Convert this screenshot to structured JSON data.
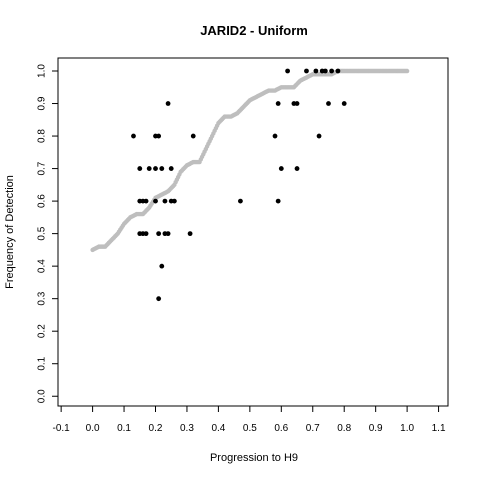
{
  "chart_data": {
    "type": "scatter",
    "title": "JARID2 - Uniform",
    "xlabel": "Progression to H9",
    "ylabel": "Frequency of Detection",
    "xlim": [
      -0.11,
      1.13
    ],
    "ylim": [
      -0.03,
      1.04
    ],
    "x_ticks": [
      -0.1,
      0.0,
      0.1,
      0.2,
      0.3,
      0.4,
      0.5,
      0.6,
      0.7,
      0.8,
      0.9,
      1.0,
      1.1
    ],
    "x_tick_labels": [
      "-0.1",
      "0.0",
      "0.1",
      "0.2",
      "0.3",
      "0.4",
      "0.5",
      "0.6",
      "0.7",
      "0.8",
      "0.9",
      "1.0",
      "1.1"
    ],
    "y_ticks": [
      0.0,
      0.1,
      0.2,
      0.3,
      0.4,
      0.5,
      0.6,
      0.7,
      0.8,
      0.9,
      1.0
    ],
    "y_tick_labels": [
      "0.0",
      "0.1",
      "0.2",
      "0.3",
      "0.4",
      "0.5",
      "0.6",
      "0.7",
      "0.8",
      "0.9",
      "1.0"
    ],
    "grid": false,
    "colors": {
      "observed": "#000000",
      "curve": "#bebebe"
    },
    "series": [
      {
        "points": [
          [
            0.13,
            0.8
          ],
          [
            0.15,
            0.7
          ],
          [
            0.15,
            0.6
          ],
          [
            0.15,
            0.5
          ],
          [
            0.16,
            0.6
          ],
          [
            0.16,
            0.5
          ],
          [
            0.17,
            0.6
          ],
          [
            0.17,
            0.5
          ],
          [
            0.18,
            0.7
          ],
          [
            0.2,
            0.8
          ],
          [
            0.2,
            0.7
          ],
          [
            0.2,
            0.6
          ],
          [
            0.21,
            0.8
          ],
          [
            0.21,
            0.5
          ],
          [
            0.21,
            0.3
          ],
          [
            0.22,
            0.7
          ],
          [
            0.22,
            0.4
          ],
          [
            0.23,
            0.6
          ],
          [
            0.23,
            0.5
          ],
          [
            0.24,
            0.9
          ],
          [
            0.24,
            0.5
          ],
          [
            0.25,
            0.7
          ],
          [
            0.25,
            0.6
          ],
          [
            0.26,
            0.6
          ],
          [
            0.31,
            0.5
          ],
          [
            0.32,
            0.8
          ],
          [
            0.47,
            0.6
          ],
          [
            0.58,
            0.8
          ],
          [
            0.59,
            0.9
          ],
          [
            0.59,
            0.6
          ],
          [
            0.6,
            0.7
          ],
          [
            0.62,
            1.0
          ],
          [
            0.64,
            0.9
          ],
          [
            0.65,
            0.9
          ],
          [
            0.65,
            0.7
          ],
          [
            0.68,
            1.0
          ],
          [
            0.71,
            1.0
          ],
          [
            0.72,
            0.8
          ],
          [
            0.73,
            1.0
          ],
          [
            0.74,
            1.0
          ],
          [
            0.75,
            0.9
          ],
          [
            0.76,
            1.0
          ],
          [
            0.78,
            1.0
          ],
          [
            0.8,
            0.9
          ]
        ]
      },
      {
        "points": [
          [
            0.0,
            0.45
          ],
          [
            0.02,
            0.46
          ],
          [
            0.04,
            0.46
          ],
          [
            0.06,
            0.48
          ],
          [
            0.08,
            0.5
          ],
          [
            0.1,
            0.53
          ],
          [
            0.12,
            0.55
          ],
          [
            0.14,
            0.56
          ],
          [
            0.16,
            0.56
          ],
          [
            0.18,
            0.58
          ],
          [
            0.2,
            0.61
          ],
          [
            0.22,
            0.62
          ],
          [
            0.24,
            0.63
          ],
          [
            0.26,
            0.65
          ],
          [
            0.28,
            0.69
          ],
          [
            0.3,
            0.71
          ],
          [
            0.32,
            0.72
          ],
          [
            0.34,
            0.72
          ],
          [
            0.36,
            0.76
          ],
          [
            0.38,
            0.8
          ],
          [
            0.4,
            0.84
          ],
          [
            0.42,
            0.86
          ],
          [
            0.44,
            0.86
          ],
          [
            0.46,
            0.87
          ],
          [
            0.48,
            0.89
          ],
          [
            0.5,
            0.91
          ],
          [
            0.52,
            0.92
          ],
          [
            0.54,
            0.93
          ],
          [
            0.56,
            0.94
          ],
          [
            0.58,
            0.94
          ],
          [
            0.6,
            0.95
          ],
          [
            0.62,
            0.95
          ],
          [
            0.64,
            0.95
          ],
          [
            0.66,
            0.97
          ],
          [
            0.68,
            0.98
          ],
          [
            0.7,
            0.99
          ],
          [
            0.72,
            0.99
          ],
          [
            0.74,
            0.99
          ],
          [
            0.76,
            0.99
          ],
          [
            0.78,
            1.0
          ],
          [
            0.8,
            1.0
          ],
          [
            0.84,
            1.0
          ],
          [
            0.88,
            1.0
          ],
          [
            0.92,
            1.0
          ],
          [
            0.96,
            1.0
          ],
          [
            1.0,
            1.0
          ]
        ]
      }
    ]
  }
}
